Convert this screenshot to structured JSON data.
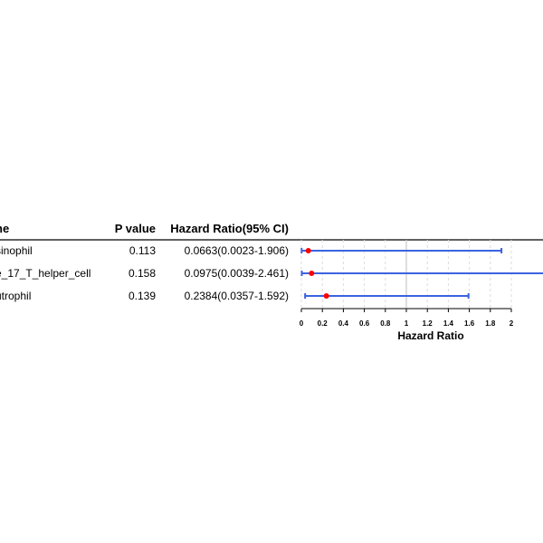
{
  "chart_data": {
    "type": "forest",
    "headers": {
      "name": "ne",
      "p_value": "P value",
      "hr": "Hazard Ratio(95% CI)"
    },
    "rows": [
      {
        "name": "sinophil",
        "p_value": "0.113",
        "hr_text": "0.0663(0.0023-1.906)",
        "hr": 0.0663,
        "lower": 0.0023,
        "upper": 1.906
      },
      {
        "name": "e_17_T_helper_cell",
        "p_value": "0.158",
        "hr_text": "0.0975(0.0039-2.461)",
        "hr": 0.0975,
        "lower": 0.0039,
        "upper": 2.461
      },
      {
        "name": "utrophil",
        "p_value": "0.139",
        "hr_text": "0.2384(0.0357-1.592)",
        "hr": 0.2384,
        "lower": 0.0357,
        "upper": 1.592
      }
    ],
    "xlabel": "Hazard Ratio",
    "xticks": [
      "0",
      "0.2",
      "0.4",
      "0.6",
      "0.8",
      "1",
      "1.2",
      "1.4",
      "1.6",
      "1.8",
      "2"
    ],
    "xlim": [
      0,
      2
    ],
    "reference_line": 1,
    "grid": "dashed vertical",
    "colors": {
      "ci_line": "#3b63e0",
      "point": "#ff0000",
      "reference": "#c8c8c8",
      "grid": "#dcdcdc"
    }
  }
}
